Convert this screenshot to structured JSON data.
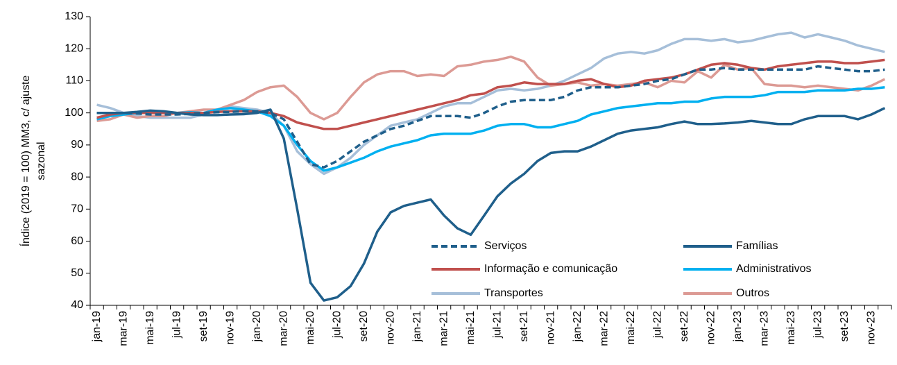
{
  "chart_data": {
    "type": "line",
    "y_label": [
      "Índice (2019 = 100) MM3, c/ ajuste",
      "sazonal"
    ],
    "categories": [
      "jan-19",
      null,
      "mar-19",
      null,
      "mai-19",
      null,
      "jul-19",
      null,
      "set-19",
      null,
      "nov-19",
      null,
      "jan-20",
      null,
      "mar-20",
      null,
      "mai-20",
      null,
      "jul-20",
      null,
      "set-20",
      null,
      "nov-20",
      null,
      "jan-21",
      null,
      "mar-21",
      null,
      "mai-21",
      null,
      "jul-21",
      null,
      "set-21",
      null,
      "nov-21",
      null,
      "jan-22",
      null,
      "mar-22",
      null,
      "mai-22",
      null,
      "jul-22",
      null,
      "set-22",
      null,
      "nov-22",
      null,
      "jan-23",
      null,
      "mar-23",
      null,
      "mai-23",
      null,
      "jul-23",
      null,
      "set-23",
      null,
      "nov-23",
      null
    ],
    "ylim": [
      40,
      130
    ],
    "yticks": [
      40,
      50,
      60,
      70,
      80,
      90,
      100,
      110,
      120,
      130
    ],
    "series": [
      {
        "name": "Serviços",
        "color": "#1f5f8b",
        "dashed": true,
        "values": [
          100,
          100,
          100,
          99.8,
          99.5,
          99.5,
          99.5,
          99.7,
          100,
          100.2,
          100.3,
          100.5,
          100.5,
          100,
          98,
          91,
          84,
          83,
          85,
          88,
          91,
          93,
          95,
          96,
          97.5,
          99,
          99,
          99,
          98.5,
          100,
          102,
          103.5,
          104,
          104,
          104,
          105,
          107,
          108,
          108,
          108,
          108.5,
          109,
          110,
          110.5,
          112,
          113.5,
          113.5,
          114,
          113.5,
          113.5,
          113.5,
          113.5,
          113.5,
          113.5,
          114.5,
          114,
          113.5,
          113,
          113,
          113.5
        ]
      },
      {
        "name": "Famílias",
        "color": "#1f5f8b",
        "dashed": false,
        "values": [
          100,
          100,
          100,
          100.3,
          100.7,
          100.5,
          100,
          99.5,
          99.3,
          99.3,
          99.5,
          99.6,
          100,
          101,
          92,
          70,
          47,
          41.5,
          42.5,
          46,
          53,
          63,
          69,
          71,
          72,
          73,
          68,
          64,
          62,
          68,
          74,
          78,
          81,
          85,
          87.5,
          88,
          88,
          89.5,
          91.5,
          93.5,
          94.5,
          95,
          95.5,
          96.5,
          97.3,
          96.5,
          96.5,
          96.7,
          97,
          97.5,
          97,
          96.5,
          96.5,
          98,
          99,
          99,
          99,
          98,
          99.5,
          101.5
        ]
      },
      {
        "name": " Informação e comunicação",
        "color": "#c0504d",
        "dashed": false,
        "values": [
          98.5,
          99.5,
          100,
          100,
          100,
          100,
          100,
          100,
          100,
          100.3,
          100.5,
          100.5,
          100.5,
          100,
          99,
          97,
          96,
          95,
          95,
          96,
          97,
          98,
          99,
          100,
          101,
          102,
          103,
          104,
          105.5,
          106,
          108,
          108.5,
          109.5,
          109,
          109,
          109,
          110,
          110.5,
          109,
          108,
          108.5,
          110,
          110.5,
          111,
          112,
          113.5,
          115,
          115.5,
          115,
          114,
          113.5,
          114.5,
          115,
          115.5,
          116,
          116,
          115.5,
          115.5,
          116,
          116.5
        ]
      },
      {
        "name": "Administrativos",
        "color": "#00b0f0",
        "dashed": false,
        "values": [
          98,
          99,
          99.5,
          100,
          100.5,
          100,
          100,
          100.2,
          100,
          101,
          101.5,
          101,
          100.5,
          99,
          96,
          90,
          85,
          82,
          83,
          84.5,
          86,
          88,
          89.5,
          90.5,
          91.5,
          93,
          93.5,
          93.5,
          93.5,
          94.5,
          96,
          96.5,
          96.5,
          95.5,
          95.5,
          96.5,
          97.5,
          99.5,
          100.5,
          101.5,
          102,
          102.5,
          103,
          103,
          103.5,
          103.5,
          104.5,
          105,
          105,
          105,
          105.5,
          106.5,
          106.5,
          106.5,
          107,
          107,
          107,
          107.5,
          107.5,
          108
        ]
      },
      {
        "name": "Transportes",
        "color": "#a6bfd9",
        "dashed": false,
        "values": [
          102.5,
          101.5,
          100,
          99,
          98.5,
          98.5,
          98.5,
          98.5,
          99.5,
          101,
          102,
          101.5,
          101,
          100,
          96,
          88,
          84,
          81,
          83,
          86,
          90,
          93,
          96,
          97,
          98,
          100,
          102,
          103,
          103,
          105,
          107,
          107.5,
          107,
          107.5,
          108.5,
          110,
          112,
          114,
          117,
          118.5,
          119,
          118.5,
          119.5,
          121.5,
          123,
          123,
          122.5,
          123,
          122,
          122.5,
          123.5,
          124.5,
          125,
          123.5,
          124.5,
          123.5,
          122.5,
          121,
          120,
          119
        ]
      },
      {
        "name": "Outros",
        "color": "#dc9a94",
        "dashed": false,
        "values": [
          97.5,
          98,
          99.5,
          98.5,
          99,
          99,
          100,
          100.5,
          101,
          101,
          102.5,
          104,
          106.5,
          108,
          108.5,
          105,
          100,
          98,
          100,
          105,
          109.5,
          112,
          113,
          113,
          111.5,
          112,
          111.5,
          114.5,
          115,
          116,
          116.5,
          117.5,
          116,
          111,
          108.5,
          109,
          109.5,
          108.5,
          109,
          108.5,
          109,
          109.5,
          108,
          110,
          109.5,
          113,
          111,
          115,
          113.5,
          114,
          109,
          108.5,
          108.5,
          108,
          108.5,
          108,
          107.5,
          107,
          108.5,
          110.5
        ]
      }
    ]
  }
}
